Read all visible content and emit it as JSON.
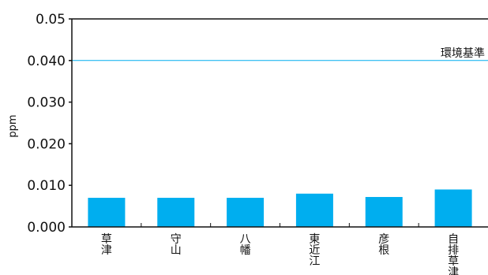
{
  "chart_data": {
    "type": "bar",
    "title": "",
    "xlabel": "",
    "ylabel": "ppm",
    "ylim": [
      0,
      0.05
    ],
    "yticks": [
      "0.000",
      "0.010",
      "0.020",
      "0.030",
      "0.040",
      "0.05"
    ],
    "categories": [
      "草津",
      "守山",
      "八幡",
      "東近江",
      "彦根",
      "自排草津"
    ],
    "category_lines": [
      [
        "草",
        "津"
      ],
      [
        "守",
        "山"
      ],
      [
        "八",
        "幡"
      ],
      [
        "東",
        "近",
        "江"
      ],
      [
        "彦",
        "根"
      ],
      [
        "自",
        "排",
        "草",
        "津"
      ]
    ],
    "values": [
      0.007,
      0.007,
      0.007,
      0.008,
      0.0072,
      0.009
    ],
    "bar_color": "#00aeef",
    "reference_line": {
      "label": "環境基準",
      "value": 0.04,
      "color": "#00aeef"
    },
    "grid": false,
    "legend": "none"
  }
}
